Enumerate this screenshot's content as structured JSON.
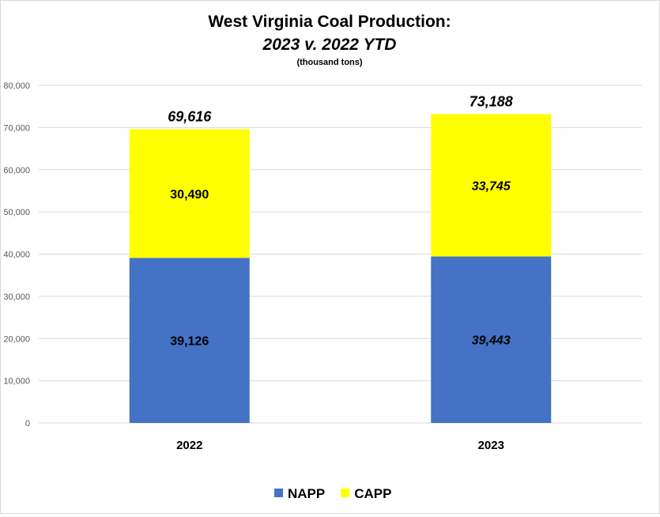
{
  "chart_data": {
    "type": "bar",
    "stacked": true,
    "title": "West Virginia Coal Production:",
    "subtitle": "2023 v. 2022 YTD",
    "unit_label": "(thousand tons)",
    "categories": [
      "2022",
      "2023"
    ],
    "series": [
      {
        "name": "NAPP",
        "color": "#4472c4",
        "values": [
          39126,
          39443
        ],
        "labels": [
          "39,126",
          "39,443"
        ]
      },
      {
        "name": "CAPP",
        "color": "#ffff00",
        "values": [
          30490,
          33745
        ],
        "labels": [
          "30,490",
          "33,745"
        ]
      }
    ],
    "totals": [
      "69,616",
      "73,188"
    ],
    "yticks": [
      "0",
      "10,000",
      "20,000",
      "30,000",
      "40,000",
      "50,000",
      "60,000",
      "70,000",
      "80,000"
    ],
    "ylim": [
      0,
      80000
    ],
    "grid": true,
    "legend_position": "bottom"
  }
}
